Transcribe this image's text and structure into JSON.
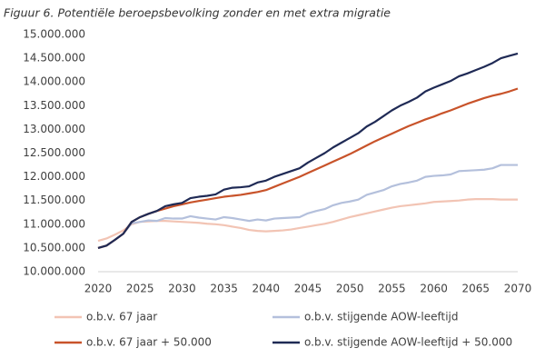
{
  "chart_data": {
    "type": "line",
    "title": "Figuur 6. Potentiële beroepsbevolking zonder en met extra migratie",
    "x": [
      2020,
      2021,
      2022,
      2023,
      2024,
      2025,
      2026,
      2027,
      2028,
      2029,
      2030,
      2031,
      2032,
      2033,
      2034,
      2035,
      2036,
      2037,
      2038,
      2039,
      2040,
      2041,
      2042,
      2043,
      2044,
      2045,
      2046,
      2047,
      2048,
      2049,
      2050,
      2051,
      2052,
      2053,
      2054,
      2055,
      2056,
      2057,
      2058,
      2059,
      2060,
      2061,
      2062,
      2063,
      2064,
      2065,
      2066,
      2067,
      2068,
      2069,
      2070
    ],
    "xlim": [
      2020,
      2070
    ],
    "xticks": [
      2020,
      2025,
      2030,
      2035,
      2040,
      2045,
      2050,
      2055,
      2060,
      2065,
      2070
    ],
    "ylim": [
      10000000,
      15000000
    ],
    "yticks": [
      {
        "value": 10000000,
        "label": "10.000.000"
      },
      {
        "value": 10500000,
        "label": "10.500.000"
      },
      {
        "value": 11000000,
        "label": "11.000.000"
      },
      {
        "value": 11500000,
        "label": "11.500.000"
      },
      {
        "value": 12000000,
        "label": "12.000.000"
      },
      {
        "value": 12500000,
        "label": "12.500.000"
      },
      {
        "value": 13000000,
        "label": "13.000.000"
      },
      {
        "value": 13500000,
        "label": "13.500.000"
      },
      {
        "value": 14000000,
        "label": "14.000.000"
      },
      {
        "value": 14500000,
        "label": "14.500.000"
      },
      {
        "value": 15000000,
        "label": "15.000.000"
      }
    ],
    "series": [
      {
        "name": "o.b.v. 67 jaar",
        "color": "#f2c4b4",
        "values": [
          10650000,
          10700000,
          10780000,
          10870000,
          11000000,
          11050000,
          11060000,
          11070000,
          11070000,
          11060000,
          11050000,
          11040000,
          11030000,
          11010000,
          11000000,
          10980000,
          10950000,
          10920000,
          10880000,
          10860000,
          10850000,
          10860000,
          10870000,
          10890000,
          10920000,
          10950000,
          10980000,
          11010000,
          11050000,
          11100000,
          11150000,
          11190000,
          11230000,
          11270000,
          11310000,
          11350000,
          11380000,
          11400000,
          11420000,
          11440000,
          11470000,
          11480000,
          11490000,
          11500000,
          11520000,
          11530000,
          11530000,
          11530000,
          11520000,
          11520000,
          11520000
        ]
      },
      {
        "name": "o.b.v. stijgende AOW-leeftijd",
        "color": "#b4c0dc",
        "values": [
          10500000,
          10550000,
          10670000,
          10800000,
          11020000,
          11050000,
          11080000,
          11070000,
          11130000,
          11120000,
          11120000,
          11170000,
          11140000,
          11120000,
          11100000,
          11150000,
          11130000,
          11100000,
          11070000,
          11100000,
          11080000,
          11120000,
          11130000,
          11140000,
          11150000,
          11230000,
          11280000,
          11320000,
          11400000,
          11450000,
          11480000,
          11520000,
          11620000,
          11670000,
          11720000,
          11800000,
          11850000,
          11880000,
          11920000,
          12000000,
          12020000,
          12030000,
          12050000,
          12120000,
          12130000,
          12140000,
          12150000,
          12180000,
          12250000,
          12250000,
          12250000
        ]
      },
      {
        "name": "o.b.v. 67 jaar + 50.000",
        "color": "#c8532a",
        "values": [
          10500000,
          10550000,
          10670000,
          10800000,
          11050000,
          11150000,
          11220000,
          11280000,
          11330000,
          11380000,
          11420000,
          11460000,
          11490000,
          11520000,
          11550000,
          11580000,
          11600000,
          11620000,
          11650000,
          11680000,
          11720000,
          11790000,
          11860000,
          11930000,
          12000000,
          12080000,
          12160000,
          12240000,
          12320000,
          12400000,
          12480000,
          12570000,
          12660000,
          12750000,
          12830000,
          12910000,
          12990000,
          13070000,
          13140000,
          13210000,
          13270000,
          13340000,
          13400000,
          13470000,
          13540000,
          13600000,
          13660000,
          13710000,
          13750000,
          13800000,
          13860000
        ]
      },
      {
        "name": "o.b.v. stijgende AOW-leeftijd + 50.000",
        "color": "#1f2a55",
        "values": [
          10500000,
          10550000,
          10670000,
          10800000,
          11050000,
          11150000,
          11220000,
          11280000,
          11380000,
          11420000,
          11450000,
          11550000,
          11580000,
          11600000,
          11630000,
          11730000,
          11770000,
          11780000,
          11800000,
          11880000,
          11920000,
          12000000,
          12060000,
          12120000,
          12180000,
          12300000,
          12400000,
          12500000,
          12620000,
          12720000,
          12820000,
          12920000,
          13060000,
          13160000,
          13280000,
          13400000,
          13500000,
          13580000,
          13670000,
          13800000,
          13880000,
          13950000,
          14020000,
          14120000,
          14180000,
          14250000,
          14320000,
          14400000,
          14500000,
          14550000,
          14600000
        ]
      }
    ],
    "grid": false
  }
}
